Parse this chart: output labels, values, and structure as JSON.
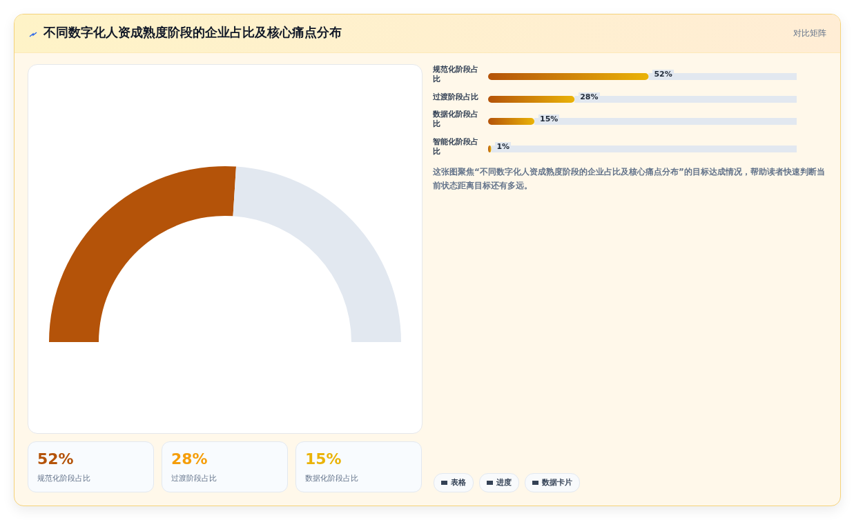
{
  "chart_data": [
    {
      "type": "other",
      "title": "不同数字化人资成熟度阶段的企业占比及核心痛点分布",
      "subtitle": "对比矩阵"
    },
    {
      "type": "donut",
      "categories": [
        null,
        null
      ],
      "values": [
        52,
        48
      ],
      "colors": [
        "#b45309",
        "#e2e8f0"
      ]
    },
    {
      "type": "bar",
      "orientation": "horizontal",
      "categories": [
        "规范化阶段占比",
        "过渡阶段占比",
        "数据化阶段占比",
        "智能化阶段占比"
      ],
      "values": [
        52,
        28,
        15,
        1
      ],
      "value_labels": [
        "52%",
        "28%",
        "15%",
        "1%"
      ],
      "xlim": [
        0,
        100
      ],
      "color": "#b45309",
      "annotations": [
        "这张图聚焦“不同数字化人资成熟度阶段的企业占比及核心痛点分布”的目标达成情况，帮助读者快速判断当前状态距离目标还有多远。",
        "表格",
        "进度",
        "数据卡片"
      ]
    },
    {
      "type": "other",
      "annotations": [
        "52%",
        "规范化阶段占比",
        "28%",
        "过渡阶段占比",
        "15%",
        "数据化阶段占比"
      ]
    }
  ]
}
